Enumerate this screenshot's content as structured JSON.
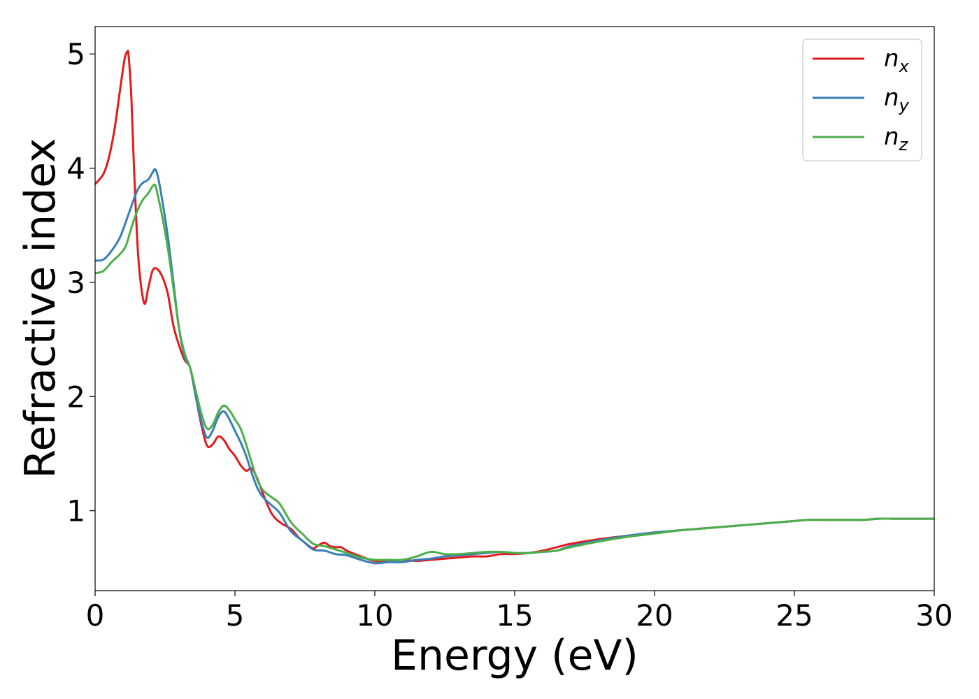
{
  "chart_data": {
    "type": "line",
    "xlabel": "Energy (eV)",
    "ylabel": "Refractive index",
    "xlim": [
      0,
      30
    ],
    "ylim": [
      0.3,
      5.24
    ],
    "xticks": [
      0,
      5,
      10,
      15,
      20,
      25,
      30
    ],
    "yticks": [
      1,
      2,
      3,
      4,
      5
    ],
    "grid": false,
    "legend_position": "top-right",
    "series": [
      {
        "name": "n_x",
        "label_base": "n",
        "label_sub": "x",
        "color": "#e41a1c",
        "x": [
          0,
          0.3,
          0.5,
          0.7,
          0.9,
          1.05,
          1.15,
          1.2,
          1.3,
          1.4,
          1.55,
          1.75,
          1.9,
          2.05,
          2.2,
          2.4,
          2.6,
          2.8,
          3.0,
          3.2,
          3.4,
          3.6,
          3.8,
          4.0,
          4.2,
          4.4,
          4.6,
          4.8,
          5.0,
          5.2,
          5.4,
          5.6,
          5.8,
          6.0,
          6.3,
          6.6,
          7.0,
          7.3,
          7.6,
          7.8,
          8.0,
          8.2,
          8.4,
          8.6,
          8.8,
          9.0,
          9.5,
          10.0,
          10.5,
          11.0,
          11.5,
          12.0,
          12.5,
          13.0,
          13.5,
          14.0,
          14.5,
          15.0,
          15.5,
          16.0,
          16.5,
          17.0,
          18.0,
          19.0,
          20.0,
          21.0,
          22.0,
          23.0,
          24.0,
          25.0,
          25.5,
          26.0,
          27.0,
          27.5,
          28.0,
          28.5,
          29.0,
          29.5,
          30.0
        ],
        "y": [
          3.86,
          3.95,
          4.1,
          4.35,
          4.7,
          4.95,
          5.02,
          4.98,
          4.6,
          3.95,
          3.2,
          2.82,
          2.95,
          3.1,
          3.12,
          3.05,
          2.9,
          2.62,
          2.45,
          2.32,
          2.25,
          2.0,
          1.75,
          1.57,
          1.58,
          1.65,
          1.62,
          1.54,
          1.48,
          1.4,
          1.35,
          1.37,
          1.28,
          1.15,
          0.98,
          0.9,
          0.84,
          0.76,
          0.7,
          0.67,
          0.7,
          0.72,
          0.69,
          0.68,
          0.68,
          0.65,
          0.6,
          0.56,
          0.56,
          0.57,
          0.56,
          0.57,
          0.58,
          0.59,
          0.6,
          0.6,
          0.62,
          0.62,
          0.63,
          0.65,
          0.68,
          0.71,
          0.75,
          0.78,
          0.81,
          0.83,
          0.85,
          0.87,
          0.89,
          0.91,
          0.92,
          0.92,
          0.92,
          0.92,
          0.93,
          0.93,
          0.93,
          0.93,
          0.93
        ]
      },
      {
        "name": "n_y",
        "label_base": "n",
        "label_sub": "y",
        "color": "#377eb8",
        "x": [
          0,
          0.3,
          0.6,
          0.9,
          1.2,
          1.5,
          1.7,
          1.9,
          2.05,
          2.15,
          2.25,
          2.4,
          2.6,
          2.8,
          3.0,
          3.2,
          3.4,
          3.6,
          3.8,
          4.0,
          4.2,
          4.4,
          4.6,
          4.8,
          5.0,
          5.2,
          5.4,
          5.6,
          5.8,
          6.0,
          6.3,
          6.6,
          7.0,
          7.4,
          7.8,
          8.2,
          8.6,
          9.0,
          9.5,
          10.0,
          10.5,
          11.0,
          11.5,
          12.0,
          12.5,
          13.0,
          13.5,
          14.0,
          14.5,
          15.0,
          15.5,
          16.0,
          16.5,
          17.0,
          18.0,
          19.0,
          20.0,
          21.0,
          22.0,
          23.0,
          24.0,
          25.0,
          25.5,
          26.0,
          27.0,
          27.5,
          28.0,
          28.5,
          29.0,
          29.5,
          30.0
        ],
        "y": [
          3.19,
          3.2,
          3.28,
          3.4,
          3.6,
          3.8,
          3.87,
          3.9,
          3.96,
          3.99,
          3.92,
          3.72,
          3.4,
          3.0,
          2.6,
          2.35,
          2.25,
          2.0,
          1.78,
          1.64,
          1.7,
          1.82,
          1.87,
          1.8,
          1.7,
          1.6,
          1.48,
          1.33,
          1.2,
          1.12,
          1.05,
          0.98,
          0.82,
          0.74,
          0.66,
          0.65,
          0.62,
          0.61,
          0.57,
          0.54,
          0.55,
          0.55,
          0.57,
          0.58,
          0.6,
          0.61,
          0.62,
          0.63,
          0.64,
          0.63,
          0.63,
          0.64,
          0.65,
          0.69,
          0.74,
          0.78,
          0.81,
          0.83,
          0.85,
          0.87,
          0.89,
          0.91,
          0.92,
          0.92,
          0.92,
          0.92,
          0.93,
          0.93,
          0.93,
          0.93,
          0.93
        ]
      },
      {
        "name": "n_z",
        "label_base": "n",
        "label_sub": "z",
        "color": "#4daf4a",
        "x": [
          0,
          0.3,
          0.6,
          0.9,
          1.1,
          1.3,
          1.5,
          1.7,
          1.9,
          2.05,
          2.15,
          2.25,
          2.4,
          2.6,
          2.8,
          3.0,
          3.2,
          3.4,
          3.6,
          3.8,
          4.0,
          4.2,
          4.4,
          4.6,
          4.8,
          5.0,
          5.2,
          5.4,
          5.6,
          5.8,
          6.0,
          6.3,
          6.6,
          7.0,
          7.4,
          7.8,
          8.2,
          8.6,
          9.0,
          9.5,
          10.0,
          10.5,
          11.0,
          11.5,
          12.0,
          12.5,
          13.0,
          13.5,
          14.0,
          14.5,
          15.0,
          15.5,
          16.0,
          16.5,
          17.0,
          18.0,
          19.0,
          20.0,
          21.0,
          22.0,
          23.0,
          24.0,
          25.0,
          25.5,
          26.0,
          27.0,
          27.5,
          28.0,
          28.5,
          29.0,
          29.5,
          30.0
        ],
        "y": [
          3.08,
          3.1,
          3.18,
          3.25,
          3.32,
          3.48,
          3.62,
          3.72,
          3.78,
          3.84,
          3.85,
          3.75,
          3.58,
          3.3,
          2.95,
          2.6,
          2.38,
          2.25,
          2.05,
          1.85,
          1.72,
          1.75,
          1.86,
          1.92,
          1.88,
          1.8,
          1.72,
          1.58,
          1.42,
          1.27,
          1.18,
          1.12,
          1.06,
          0.9,
          0.8,
          0.71,
          0.69,
          0.66,
          0.63,
          0.59,
          0.57,
          0.57,
          0.57,
          0.6,
          0.64,
          0.62,
          0.62,
          0.63,
          0.64,
          0.64,
          0.63,
          0.63,
          0.64,
          0.65,
          0.68,
          0.73,
          0.77,
          0.8,
          0.83,
          0.85,
          0.87,
          0.89,
          0.91,
          0.92,
          0.92,
          0.92,
          0.92,
          0.93,
          0.93,
          0.93,
          0.93,
          0.93
        ]
      }
    ]
  }
}
